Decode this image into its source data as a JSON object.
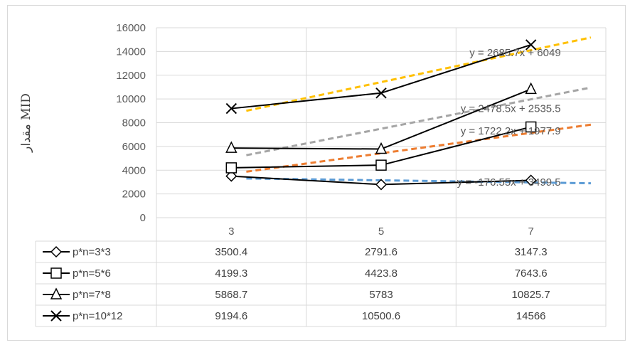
{
  "chart_data": {
    "type": "line",
    "ylabel": "مقدار MID",
    "ylim": [
      0,
      16000
    ],
    "y_ticks": [
      "0",
      "2000",
      "4000",
      "6000",
      "8000",
      "10000",
      "12000",
      "14000",
      "16000"
    ],
    "categories": [
      "3",
      "5",
      "7"
    ],
    "grid": true,
    "legend": "data-table-below",
    "series": [
      {
        "name": "p*n=3*3",
        "marker": "diamond",
        "values": [
          3500.4,
          2791.6,
          3147.3
        ],
        "display": [
          "3500.4",
          "2791.6",
          "3147.3"
        ]
      },
      {
        "name": "p*n=5*6",
        "marker": "square",
        "values": [
          4199.3,
          4423.8,
          7643.6
        ],
        "display": [
          "4199.3",
          "4423.8",
          "7643.6"
        ]
      },
      {
        "name": "p*n=7*8",
        "marker": "triangle",
        "values": [
          5868.7,
          5783,
          10825.7
        ],
        "display": [
          "5868.7",
          "5783",
          "10825.7"
        ]
      },
      {
        "name": "p*n=10*12",
        "marker": "x",
        "values": [
          9194.6,
          10500.6,
          14566
        ],
        "display": [
          "9194.6",
          "10500.6",
          "14566"
        ]
      }
    ],
    "trendlines": [
      {
        "equation": "y = -176.55x + 3499.5",
        "slope": -176.55,
        "intercept": 3499.5,
        "color": "#5b9bd5"
      },
      {
        "equation": "y = 1722.2x + 1977.9",
        "slope": 1722.2,
        "intercept": 1977.9,
        "color": "#ed7d31"
      },
      {
        "equation": "y = 2478.5x + 2535.5",
        "slope": 2478.5,
        "intercept": 2535.5,
        "color": "#a5a5a5"
      },
      {
        "equation": "y = 2685.7x + 6049",
        "slope": 2685.7,
        "intercept": 6049,
        "color": "#ffc000"
      }
    ]
  }
}
